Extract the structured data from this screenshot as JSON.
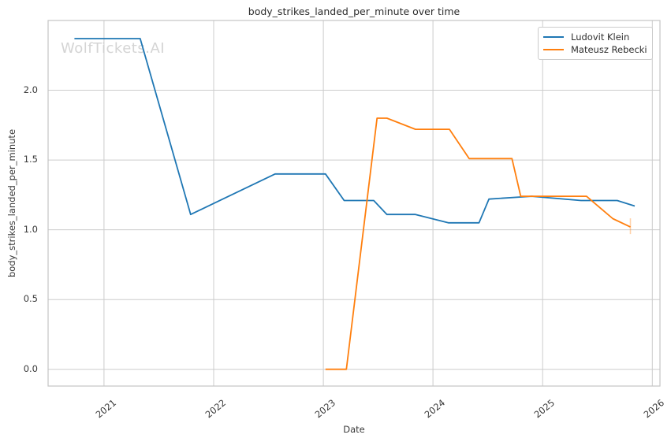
{
  "figure": {
    "watermark": "WolfTickets.AI"
  },
  "chart_data": {
    "type": "line",
    "title": "body_strikes_landed_per_minute over time",
    "xlabel": "Date",
    "ylabel": "body_strikes_landed_per_minute",
    "grid": true,
    "legend_position": "upper right",
    "xlim": [
      2020.49,
      2026.07
    ],
    "ylim": [
      -0.12,
      2.5
    ],
    "x_ticks": [
      {
        "label": "2021",
        "value": 2021
      },
      {
        "label": "2022",
        "value": 2022
      },
      {
        "label": "2023",
        "value": 2023
      },
      {
        "label": "2024",
        "value": 2024
      },
      {
        "label": "2025",
        "value": 2025
      },
      {
        "label": "2026",
        "value": 2026
      }
    ],
    "y_ticks": [
      {
        "label": "0.0",
        "value": 0.0
      },
      {
        "label": "0.5",
        "value": 0.5
      },
      {
        "label": "1.0",
        "value": 1.0
      },
      {
        "label": "1.5",
        "value": 1.5
      },
      {
        "label": "2.0",
        "value": 2.0
      }
    ],
    "series": [
      {
        "name": "Ludovit Klein",
        "color": "#1f77b4",
        "end_marker": false,
        "points": [
          [
            2020.73,
            2.37
          ],
          [
            2021.33,
            2.37
          ],
          [
            2021.79,
            1.11
          ],
          [
            2022.56,
            1.4
          ],
          [
            2023.02,
            1.4
          ],
          [
            2023.19,
            1.21
          ],
          [
            2023.46,
            1.21
          ],
          [
            2023.58,
            1.11
          ],
          [
            2023.84,
            1.11
          ],
          [
            2024.14,
            1.05
          ],
          [
            2024.42,
            1.05
          ],
          [
            2024.51,
            1.22
          ],
          [
            2024.9,
            1.24
          ],
          [
            2025.35,
            1.21
          ],
          [
            2025.68,
            1.21
          ],
          [
            2025.84,
            1.17
          ]
        ]
      },
      {
        "name": "Mateusz Rebecki",
        "color": "#ff7f0e",
        "end_marker": true,
        "points": [
          [
            2023.02,
            0.0
          ],
          [
            2023.21,
            0.0
          ],
          [
            2023.49,
            1.8
          ],
          [
            2023.58,
            1.8
          ],
          [
            2023.84,
            1.72
          ],
          [
            2024.15,
            1.72
          ],
          [
            2024.33,
            1.51
          ],
          [
            2024.72,
            1.51
          ],
          [
            2024.8,
            1.24
          ],
          [
            2025.4,
            1.24
          ],
          [
            2025.64,
            1.08
          ],
          [
            2025.8,
            1.02
          ]
        ]
      }
    ]
  }
}
